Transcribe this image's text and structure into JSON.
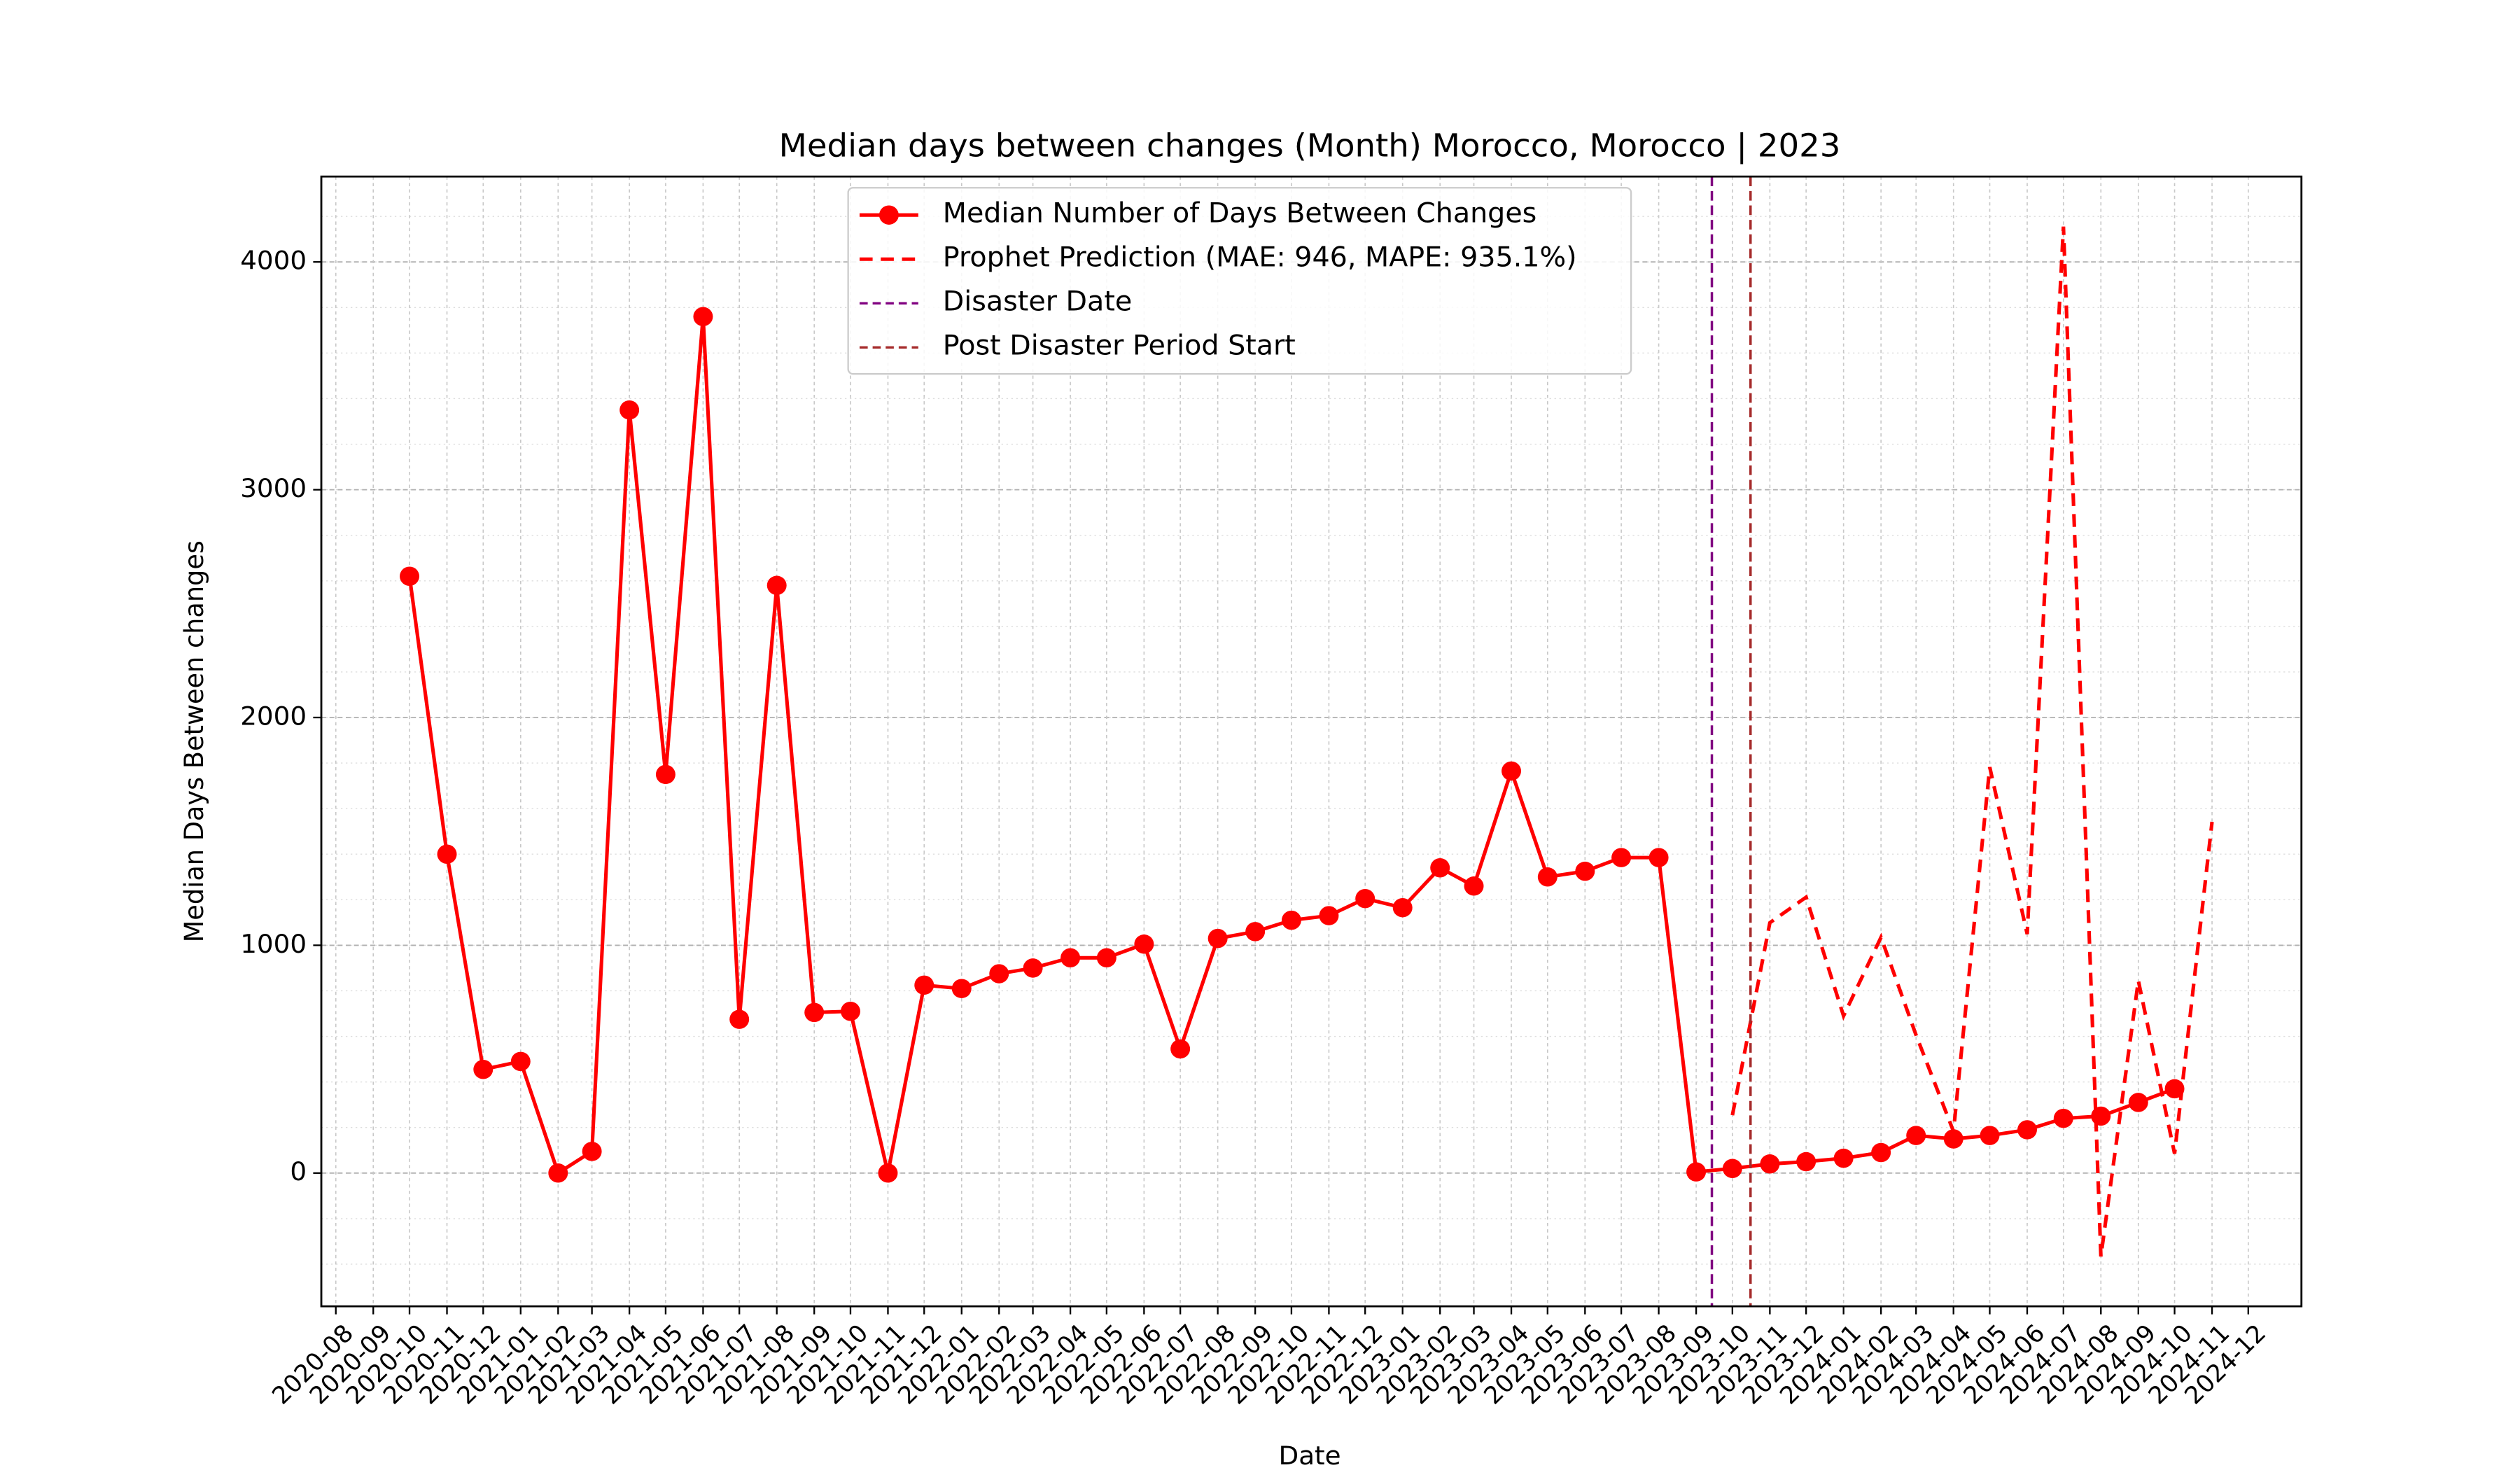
{
  "chart_data": {
    "type": "line",
    "title": "Median days between changes (Month) Morocco, Morocco | 2023",
    "xlabel": "Date",
    "ylabel": "Median Days Between changes",
    "xlim": [
      "2020-07-20",
      "2025-01-14"
    ],
    "xticks": [
      "2020-08",
      "2020-09",
      "2020-10",
      "2020-11",
      "2020-12",
      "2021-01",
      "2021-02",
      "2021-03",
      "2021-04",
      "2021-05",
      "2021-06",
      "2021-07",
      "2021-08",
      "2021-09",
      "2021-10",
      "2021-11",
      "2021-12",
      "2022-01",
      "2022-02",
      "2022-03",
      "2022-04",
      "2022-05",
      "2022-06",
      "2022-07",
      "2022-08",
      "2022-09",
      "2022-10",
      "2022-11",
      "2022-12",
      "2023-01",
      "2023-02",
      "2023-03",
      "2023-04",
      "2023-05",
      "2023-06",
      "2023-07",
      "2023-08",
      "2023-09",
      "2023-10",
      "2023-11",
      "2023-12",
      "2024-01",
      "2024-02",
      "2024-03",
      "2024-04",
      "2024-05",
      "2024-06",
      "2024-07",
      "2024-08",
      "2024-09",
      "2024-10",
      "2024-11",
      "2024-12"
    ],
    "ylim": [
      -585,
      4375
    ],
    "yticks": [
      0,
      1000,
      2000,
      3000,
      4000
    ],
    "grid": true,
    "legend": "upper center",
    "series": [
      {
        "name": "Median Number of Days Between Changes",
        "color": "#ff0000",
        "style": "solid-marker",
        "x": [
          "2020-10",
          "2020-11",
          "2020-12",
          "2021-01",
          "2021-02",
          "2021-03",
          "2021-04",
          "2021-05",
          "2021-06",
          "2021-07",
          "2021-08",
          "2021-09",
          "2021-10",
          "2021-11",
          "2021-12",
          "2022-01",
          "2022-02",
          "2022-03",
          "2022-04",
          "2022-05",
          "2022-06",
          "2022-07",
          "2022-08",
          "2022-09",
          "2022-10",
          "2022-11",
          "2022-12",
          "2023-01",
          "2023-02",
          "2023-03",
          "2023-04",
          "2023-05",
          "2023-06",
          "2023-07",
          "2023-08",
          "2023-09",
          "2023-10",
          "2023-11",
          "2023-12",
          "2024-01",
          "2024-02",
          "2024-03",
          "2024-04",
          "2024-05",
          "2024-06",
          "2024-07",
          "2024-08",
          "2024-09",
          "2024-10"
        ],
        "values": [
          2620,
          1400,
          455,
          490,
          0,
          95,
          3350,
          1750,
          3760,
          675,
          2580,
          705,
          710,
          0,
          825,
          810,
          875,
          900,
          945,
          945,
          1005,
          545,
          1030,
          1060,
          1110,
          1130,
          1205,
          1165,
          1340,
          1260,
          1765,
          1300,
          1325,
          1385,
          1385,
          5,
          20,
          40,
          50,
          65,
          90,
          165,
          150,
          165,
          190,
          240,
          250,
          310,
          370
        ]
      },
      {
        "name": "Prophet Prediction (MAE: 946, MAPE: 935.1%)",
        "color": "#ff0000",
        "style": "dashed",
        "x": [
          "2023-10",
          "2023-11",
          "2023-12",
          "2024-01",
          "2024-02",
          "2024-03",
          "2024-04",
          "2024-05",
          "2024-06",
          "2024-07",
          "2024-08",
          "2024-09",
          "2024-10",
          "2024-11"
        ],
        "values": [
          254,
          1099,
          1211,
          690,
          1035,
          606,
          183,
          1782,
          1049,
          4155,
          -366,
          845,
          85,
          1542
        ]
      },
      {
        "name": "Disaster Date",
        "color": "#800080",
        "style": "vline",
        "x": [
          "2023-09-14"
        ]
      },
      {
        "name": "Post Disaster Period Start",
        "color": "#a52a2a",
        "style": "vline",
        "x": [
          "2023-10-16"
        ]
      }
    ]
  }
}
